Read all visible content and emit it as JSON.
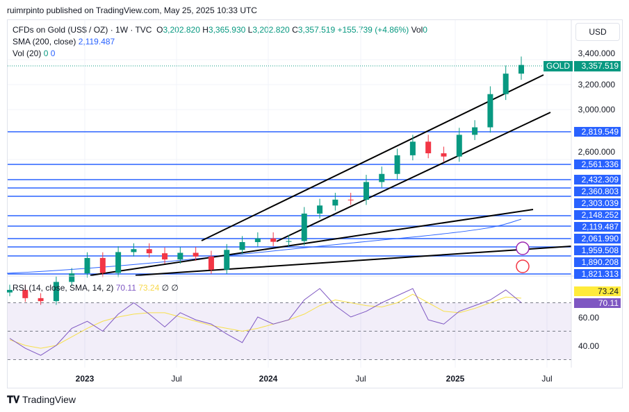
{
  "publisher": "ruimrpinto published on TradingView.com, May 25, 2025 10:33 UTC",
  "legend": {
    "symbol": "CFDs on Gold (US$ / OZ) · 1W · TVC",
    "o_label": "O",
    "o": "3,202.820",
    "h_label": "H",
    "h": "3,365.930",
    "l_label": "L",
    "l": "3,202.820",
    "c_label": "C",
    "c": "3,357.519",
    "change": "+155.739 (+4.86%)",
    "vol_label": "Vol",
    "vol": "0",
    "sma_label": "SMA (200, close)",
    "sma_value": "2,119.487",
    "vol20_label": "Vol (20)",
    "vol20_a": "0",
    "vol20_b": "0"
  },
  "currency": "USD",
  "symbol_tag": "GOLD",
  "last_price": "3,357.519",
  "price_axis": [
    "3,400.000",
    "3,200.000",
    "3,000.000",
    "2,600.000"
  ],
  "levels": [
    "2,819.549",
    "2,561.336",
    "2,432.309",
    "2,360.803",
    "2,303.039",
    "2,148.252",
    "2,119.487",
    "2,061.990",
    "1,959.508",
    "1,890.208",
    "1,821.313"
  ],
  "rsi": {
    "label": "RSI (14, close, SMA, 14, 2)",
    "value": "70.11",
    "sma_value": "73.24",
    "na1": "∅",
    "na2": "∅",
    "axis": [
      "60.00",
      "40.00"
    ]
  },
  "time_axis": [
    "2023",
    "Jul",
    "2024",
    "Jul",
    "2025",
    "Jul"
  ],
  "brand": "TradingView",
  "colors": {
    "up": "#089981",
    "down": "#f23645",
    "level": "#2962ff",
    "rsi": "#7e57c2",
    "rsi_sma": "#f7e04b",
    "sma": "#2962ff"
  },
  "chart_data": {
    "type": "candlestick",
    "x": [
      "2022-08",
      "2022-09",
      "2022-10",
      "2022-11",
      "2022-12",
      "2023-01",
      "2023-02",
      "2023-03",
      "2023-04",
      "2023-05",
      "2023-06",
      "2023-07",
      "2023-08",
      "2023-09",
      "2023-10",
      "2023-11",
      "2023-12",
      "2024-01",
      "2024-02",
      "2024-03",
      "2024-04",
      "2024-05",
      "2024-06",
      "2024-07",
      "2024-08",
      "2024-09",
      "2024-10",
      "2024-11",
      "2024-12",
      "2025-01",
      "2025-02",
      "2025-03",
      "2025-04",
      "2025-05"
    ],
    "close": [
      1715,
      1660,
      1640,
      1768,
      1825,
      1930,
      1828,
      1970,
      1990,
      1962,
      1920,
      1965,
      1940,
      1850,
      1985,
      2038,
      2063,
      2040,
      2045,
      2232,
      2287,
      2327,
      2326,
      2447,
      2502,
      2634,
      2743,
      2650,
      2624,
      2798,
      2858,
      3124,
      3288,
      3357.519
    ],
    "rsi": [
      45,
      38,
      33,
      40,
      52,
      57,
      50,
      62,
      70,
      62,
      53,
      63,
      58,
      55,
      48,
      42,
      60,
      55,
      58,
      72,
      80,
      68,
      60,
      64,
      70,
      75,
      80,
      58,
      55,
      64,
      68,
      72,
      79,
      70.11
    ],
    "rsi_sma": [
      44,
      40,
      38,
      40,
      46,
      52,
      57,
      60,
      62,
      63,
      63,
      60,
      57,
      54,
      52,
      50,
      52,
      55,
      58,
      62,
      68,
      72,
      70,
      68,
      67,
      70,
      76,
      70,
      64,
      63,
      66,
      70,
      74,
      73.24
    ],
    "sma200_last": 2119.487,
    "yaxis_scale": "log",
    "rsi_levels": [
      70,
      50,
      30
    ]
  }
}
